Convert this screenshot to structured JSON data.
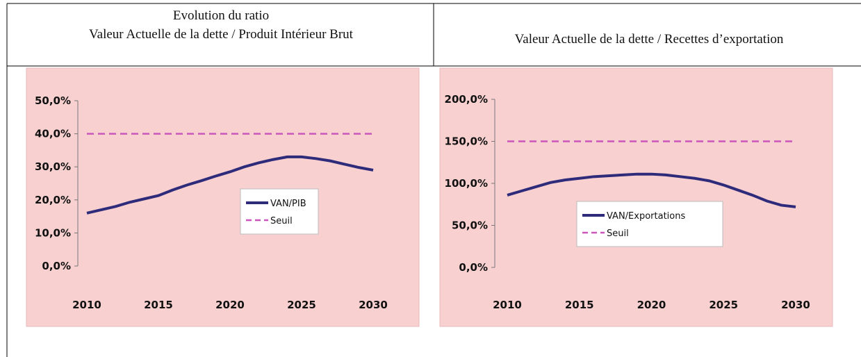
{
  "table": {
    "headers": [
      [
        "Evolution du ratio",
        "Valeur Actuelle de la dette / Produit Intérieur Brut"
      ],
      [
        "Valeur Actuelle de la dette / Recettes d’exportation"
      ]
    ]
  },
  "chart_data": [
    {
      "type": "line",
      "x": [
        2010,
        2011,
        2012,
        2013,
        2014,
        2015,
        2016,
        2017,
        2018,
        2019,
        2020,
        2021,
        2022,
        2023,
        2024,
        2025,
        2026,
        2027,
        2028,
        2029,
        2030
      ],
      "series": [
        {
          "name": "VAN/PIB",
          "color": "#2e2b7a",
          "values": [
            16,
            17,
            18,
            19.3,
            20.3,
            21.3,
            23,
            24.5,
            25.8,
            27.2,
            28.5,
            30,
            31.2,
            32.2,
            33,
            33,
            32.5,
            31.8,
            30.8,
            29.8,
            29
          ]
        },
        {
          "name": "Seuil",
          "color": "#cc55bb",
          "dashed": true,
          "values": [
            40,
            40,
            40,
            40,
            40,
            40,
            40,
            40,
            40,
            40,
            40,
            40,
            40,
            40,
            40,
            40,
            40,
            40,
            40,
            40,
            40
          ]
        }
      ],
      "xlim": [
        2010,
        2030
      ],
      "xticks": [
        2010,
        2015,
        2020,
        2025,
        2030
      ],
      "ylim": [
        0,
        50
      ],
      "yticks": [
        {
          "value": 0,
          "label": "0,0%"
        },
        {
          "value": 10,
          "label": "10,0%"
        },
        {
          "value": 20,
          "label": "20,0%"
        },
        {
          "value": 30,
          "label": "30,0%"
        },
        {
          "value": 40,
          "label": "40,0%"
        },
        {
          "value": 50,
          "label": "50,0%"
        }
      ]
    },
    {
      "type": "line",
      "x": [
        2010,
        2011,
        2012,
        2013,
        2014,
        2015,
        2016,
        2017,
        2018,
        2019,
        2020,
        2021,
        2022,
        2023,
        2024,
        2025,
        2026,
        2027,
        2028,
        2029,
        2030
      ],
      "series": [
        {
          "name": "VAN/Exportations",
          "color": "#2e2b7a",
          "values": [
            86,
            91,
            96,
            101,
            104,
            106,
            108,
            109,
            110,
            111,
            111,
            110,
            108,
            106,
            103,
            98,
            92,
            86,
            79,
            74,
            72
          ]
        },
        {
          "name": "Seuil",
          "color": "#cc55bb",
          "dashed": true,
          "values": [
            150,
            150,
            150,
            150,
            150,
            150,
            150,
            150,
            150,
            150,
            150,
            150,
            150,
            150,
            150,
            150,
            150,
            150,
            150,
            150,
            150
          ]
        }
      ],
      "xlim": [
        2010,
        2030
      ],
      "xticks": [
        2010,
        2015,
        2020,
        2025,
        2030
      ],
      "ylim": [
        0,
        200
      ],
      "yticks": [
        {
          "value": 0,
          "label": "0,0%"
        },
        {
          "value": 50,
          "label": "50,0%"
        },
        {
          "value": 100,
          "label": "100,0%"
        },
        {
          "value": 150,
          "label": "150,0%"
        },
        {
          "value": 200,
          "label": "200,0%"
        }
      ]
    }
  ]
}
